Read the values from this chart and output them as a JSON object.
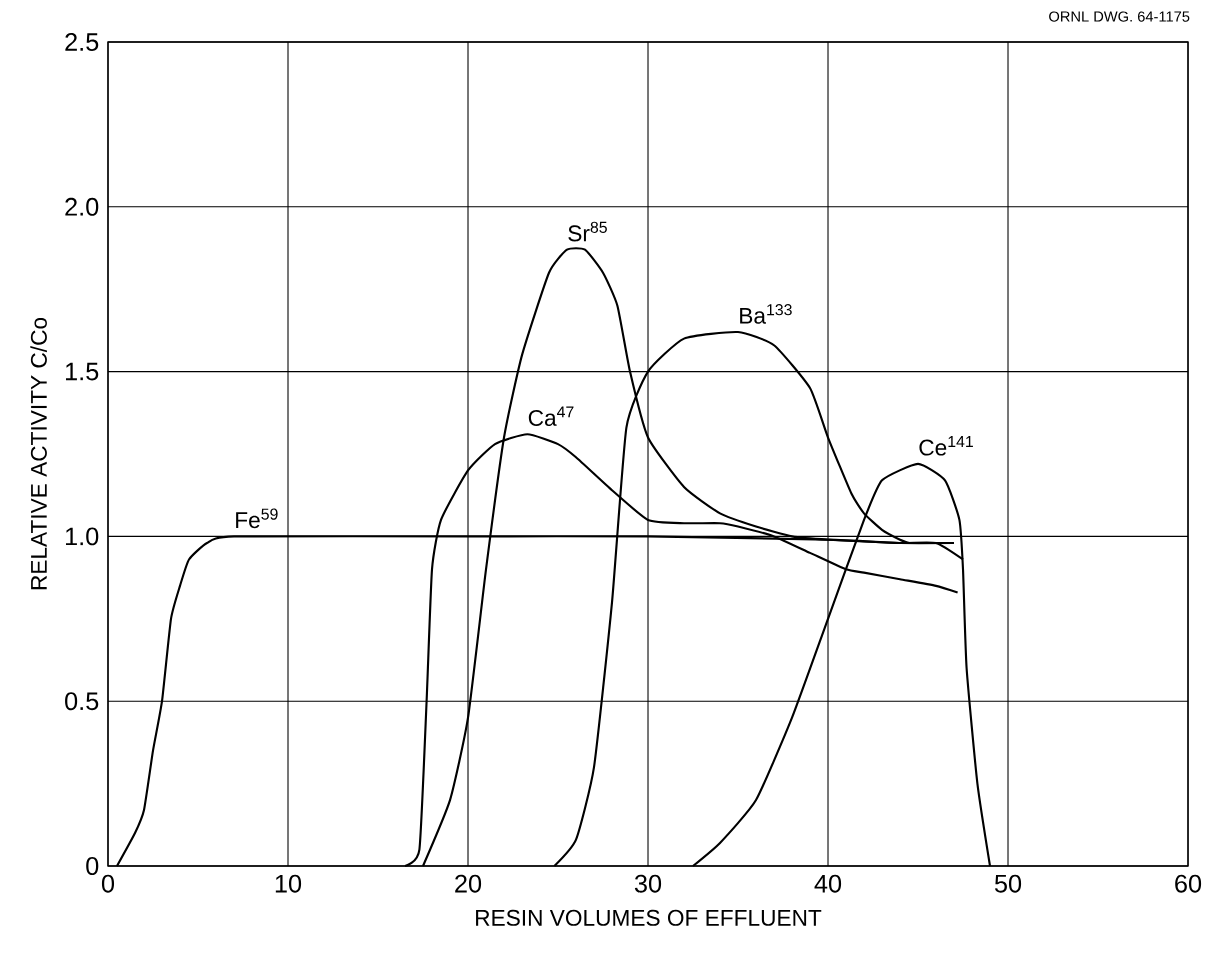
{
  "chart_data": {
    "type": "line",
    "xlabel": "RESIN VOLUMES OF EFFLUENT",
    "ylabel": "RELATIVE ACTIVITY C/Co",
    "annotations": [
      "ORNL DWG. 64-1175"
    ],
    "xlim": [
      0,
      60
    ],
    "ylim": [
      0,
      2.5
    ],
    "xticks": [
      0,
      10,
      20,
      30,
      40,
      50,
      60
    ],
    "yticks": [
      0,
      0.5,
      {
        "value": 1,
        "label": "1.0"
      },
      1.5,
      {
        "value": 2,
        "label": "2.0"
      },
      2.5
    ],
    "grid": true,
    "series": [
      {
        "name": "Fe$^{59}$",
        "color": "#000000",
        "x": [
          0.5,
          1.5,
          2,
          2.5,
          3,
          3.5,
          4,
          4.5,
          5.5,
          7,
          20,
          30,
          40,
          44,
          47
        ],
        "values": [
          0,
          0.1,
          0.17,
          0.35,
          0.5,
          0.75,
          0.85,
          0.93,
          0.98,
          1.0,
          1.0,
          1.0,
          0.99,
          0.98,
          0.98
        ]
      },
      {
        "name": "Sr$^{85}$",
        "color": "#000000",
        "x": [
          17.5,
          19,
          20,
          21,
          22,
          23,
          24.5,
          25.5,
          26.5,
          27.5,
          28.3,
          29,
          30,
          32,
          34,
          36,
          38,
          40,
          44,
          46,
          47.5
        ],
        "values": [
          0,
          0.2,
          0.45,
          0.9,
          1.3,
          1.55,
          1.8,
          1.87,
          1.87,
          1.8,
          1.7,
          1.5,
          1.3,
          1.15,
          1.07,
          1.03,
          1.0,
          0.99,
          0.98,
          0.98,
          0.93
        ]
      },
      {
        "name": "Ca$^{47}$",
        "color": "#000000",
        "x": [
          16.5,
          17.3,
          17.7,
          18,
          18.5,
          20,
          21.5,
          23.3,
          25,
          26,
          28,
          30,
          32,
          34,
          35,
          37,
          39,
          41,
          42,
          44,
          46,
          47.2
        ],
        "values": [
          0,
          0.05,
          0.5,
          0.9,
          1.05,
          1.2,
          1.28,
          1.31,
          1.28,
          1.24,
          1.14,
          1.05,
          1.04,
          1.04,
          1.03,
          1.0,
          0.95,
          0.9,
          0.89,
          0.87,
          0.85,
          0.83
        ]
      },
      {
        "name": "Ba$^{133}$",
        "color": "#000000",
        "x": [
          24.8,
          26,
          27,
          28,
          28.8,
          30,
          32,
          35,
          37,
          39,
          40,
          41.3,
          42,
          43,
          44,
          44.5
        ],
        "values": [
          0,
          0.08,
          0.3,
          0.8,
          1.33,
          1.5,
          1.6,
          1.62,
          1.58,
          1.45,
          1.3,
          1.13,
          1.07,
          1.02,
          0.99,
          0.98
        ]
      },
      {
        "name": "Ce$^{141}$",
        "color": "#000000",
        "x": [
          32.5,
          34,
          36,
          38,
          40,
          42,
          43,
          45,
          46.5,
          47.3,
          47.5,
          47.7,
          48.3,
          49
        ],
        "values": [
          0,
          0.07,
          0.2,
          0.45,
          0.75,
          1.05,
          1.17,
          1.22,
          1.17,
          1.05,
          0.9,
          0.6,
          0.25,
          0
        ]
      }
    ]
  }
}
